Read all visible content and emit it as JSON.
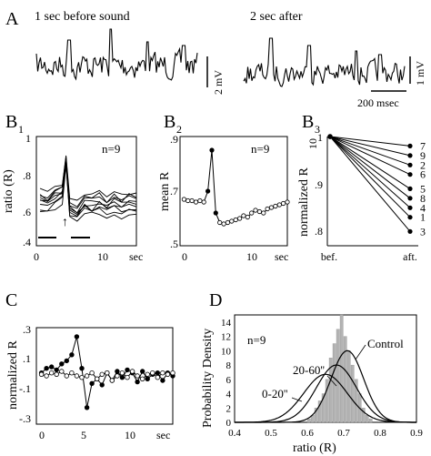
{
  "panels": {
    "A": {
      "letter": "A",
      "caption_left": "1 sec before sound",
      "caption_right": "2 sec after",
      "scale_left": "2 mV",
      "scale_right": "1 mV",
      "scale_time": "200 msec"
    },
    "B1": {
      "letter": "B",
      "sub": "1",
      "ylabel": "ratio (R)",
      "n": "n=9",
      "xunit": "sec",
      "yticks": [
        "1",
        ".8",
        ".6",
        ".4"
      ],
      "xticks": [
        "0",
        "10"
      ],
      "arrow": "↑"
    },
    "B2": {
      "letter": "B",
      "sub": "2",
      "ylabel": "mean R",
      "n": "n=9",
      "xunit": "sec",
      "yticks": [
        ".9",
        ".7",
        ".5"
      ],
      "xticks": [
        "0",
        "10"
      ]
    },
    "B3": {
      "letter": "B",
      "sub": "3",
      "ylabel": "normalized R",
      "ylabel_sub": "10",
      "yticks": [
        "1",
        ".9",
        ".8"
      ],
      "xticks": [
        "bef.",
        "aft."
      ],
      "line_labels": [
        "7",
        "9",
        "2",
        "6",
        "5",
        "8",
        "4",
        "1",
        "3"
      ]
    },
    "C": {
      "letter": "C",
      "ylabel": "normalized R",
      "xunit": "sec",
      "yticks": [
        ".3",
        ".1",
        "-.1",
        "-.3"
      ],
      "xticks": [
        "0",
        "5",
        "10"
      ]
    },
    "D": {
      "letter": "D",
      "ylabel": "Probability Density",
      "xlabel": "ratio (R)",
      "n": "n=9",
      "yticks": [
        "0",
        "2",
        "4",
        "6",
        "8",
        "10",
        "12",
        "14"
      ],
      "xticks": [
        "0.4",
        "0.5",
        "0.6",
        "0.7",
        "0.8",
        "0.9"
      ],
      "curve_labels": [
        "Control",
        "20-60''",
        "0-20''"
      ]
    }
  },
  "chart_data": [
    {
      "id": "B1",
      "type": "line",
      "x": [
        0,
        1,
        2,
        3,
        3.5,
        4,
        5,
        6,
        7,
        8,
        9,
        10,
        11,
        12,
        13
      ],
      "series": [
        {
          "values": [
            0.68,
            0.67,
            0.69,
            0.72,
            0.88,
            0.64,
            0.62,
            0.66,
            0.65,
            0.67,
            0.64,
            0.66,
            0.65,
            0.67,
            0.66
          ]
        }
      ],
      "ylim": [
        0.45,
        1.0
      ],
      "xlim": [
        -0.5,
        13
      ]
    },
    {
      "id": "B2",
      "type": "line",
      "x": [
        0,
        0.5,
        1,
        1.5,
        2,
        2.5,
        3,
        3.5,
        4,
        4.5,
        5,
        5.5,
        6,
        6.5,
        7,
        7.5,
        8,
        8.5,
        9,
        9.5,
        10,
        10.5,
        11,
        11.5,
        12,
        12.5,
        13
      ],
      "series": [
        {
          "values": [
            0.67,
            0.665,
            0.665,
            0.66,
            0.665,
            0.66,
            0.7,
            0.85,
            0.62,
            0.585,
            0.58,
            0.585,
            0.59,
            0.595,
            0.6,
            0.61,
            0.605,
            0.62,
            0.63,
            0.625,
            0.62,
            0.635,
            0.64,
            0.645,
            0.65,
            0.655,
            0.66
          ]
        }
      ],
      "ylim": [
        0.5,
        0.9
      ],
      "xlim": [
        -0.5,
        13
      ]
    },
    {
      "id": "B3",
      "type": "line",
      "x": [
        "bef.",
        "aft."
      ],
      "series": [
        {
          "name": "7",
          "values": [
            1.0,
            0.98
          ]
        },
        {
          "name": "9",
          "values": [
            1.0,
            0.96
          ]
        },
        {
          "name": "2",
          "values": [
            1.0,
            0.94
          ]
        },
        {
          "name": "6",
          "values": [
            1.0,
            0.92
          ]
        },
        {
          "name": "5",
          "values": [
            1.0,
            0.89
          ]
        },
        {
          "name": "8",
          "values": [
            1.0,
            0.87
          ]
        },
        {
          "name": "4",
          "values": [
            1.0,
            0.85
          ]
        },
        {
          "name": "1",
          "values": [
            1.0,
            0.83
          ]
        },
        {
          "name": "3",
          "values": [
            1.0,
            0.8
          ]
        }
      ],
      "ylim": [
        0.77,
        1.0
      ]
    },
    {
      "id": "C",
      "type": "line",
      "x": [
        0,
        0.5,
        1,
        1.5,
        2,
        2.5,
        3,
        3.5,
        4,
        4.5,
        5,
        5.5,
        6,
        6.5,
        7,
        7.5,
        8,
        8.5,
        9,
        9.5,
        10,
        10.5,
        11,
        11.5,
        12,
        12.5,
        13
      ],
      "series": [
        {
          "name": "filled",
          "values": [
            0.02,
            0.05,
            0.06,
            0.04,
            0.08,
            0.1,
            0.14,
            0.26,
            0.05,
            -0.21,
            -0.05,
            -0.02,
            -0.06,
            0.02,
            -0.03,
            0.03,
            -0.01,
            0.04,
            0.02,
            -0.04,
            0.03,
            -0.02,
            0.01,
            0.02,
            -0.03,
            0.02,
            0.0
          ]
        },
        {
          "name": "open",
          "values": [
            0.01,
            0.0,
            0.02,
            0.01,
            0.03,
            0.0,
            0.02,
            0.0,
            -0.01,
            0.0,
            0.02,
            -0.02,
            0.01,
            0.02,
            -0.03,
            0.0,
            0.02,
            -0.01,
            0.03,
            0.0,
            -0.02,
            0.01,
            0.02,
            -0.01,
            0.02,
            0.01,
            0.02
          ]
        }
      ],
      "ylim": [
        -0.32,
        0.32
      ],
      "xlim": [
        -0.5,
        13
      ]
    },
    {
      "id": "D",
      "type": "area",
      "histogram": {
        "bin_start": 0.6,
        "bin_width": 0.01,
        "counts": [
          0.5,
          1,
          2,
          3,
          4,
          6,
          9,
          11,
          13,
          15,
          12,
          10,
          8,
          6,
          4,
          2,
          1,
          0.5
        ]
      },
      "series": [
        {
          "name": "Control",
          "mean": 0.71,
          "sd": 0.045,
          "peak": 10.0
        },
        {
          "name": "20-60''",
          "mean": 0.68,
          "sd": 0.055,
          "peak": 8.0
        },
        {
          "name": "0-20''",
          "mean": 0.65,
          "sd": 0.06,
          "peak": 6.7
        }
      ],
      "xlim": [
        0.4,
        0.9
      ],
      "ylim": [
        0,
        15
      ]
    }
  ]
}
